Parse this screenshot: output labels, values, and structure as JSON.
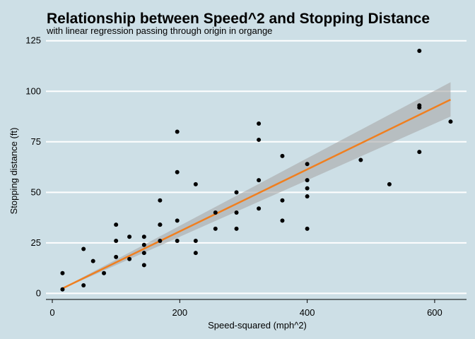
{
  "chart_data": {
    "type": "scatter",
    "title": "Relationship between Speed^2 and Stopping Distance",
    "subtitle": "with linear regression passing through origin in organge",
    "xlabel": "Speed-squared (mph^2)",
    "ylabel": "Stopping distance (ft)",
    "xlim": [
      -10,
      650
    ],
    "ylim": [
      -3,
      127
    ],
    "x_ticks": [
      0,
      200,
      400,
      600
    ],
    "y_ticks": [
      0,
      25,
      50,
      75,
      100,
      125
    ],
    "grid": "horizontal-major",
    "points": [
      [
        16,
        2
      ],
      [
        16,
        10
      ],
      [
        49,
        4
      ],
      [
        49,
        22
      ],
      [
        64,
        16
      ],
      [
        81,
        10
      ],
      [
        100,
        18
      ],
      [
        100,
        26
      ],
      [
        100,
        34
      ],
      [
        121,
        17
      ],
      [
        121,
        28
      ],
      [
        144,
        14
      ],
      [
        144,
        20
      ],
      [
        144,
        24
      ],
      [
        144,
        28
      ],
      [
        169,
        26
      ],
      [
        169,
        34
      ],
      [
        169,
        34
      ],
      [
        169,
        46
      ],
      [
        196,
        26
      ],
      [
        196,
        36
      ],
      [
        196,
        60
      ],
      [
        196,
        80
      ],
      [
        225,
        20
      ],
      [
        225,
        26
      ],
      [
        225,
        54
      ],
      [
        256,
        32
      ],
      [
        256,
        40
      ],
      [
        289,
        32
      ],
      [
        289,
        40
      ],
      [
        289,
        50
      ],
      [
        324,
        42
      ],
      [
        324,
        56
      ],
      [
        324,
        76
      ],
      [
        324,
        84
      ],
      [
        361,
        36
      ],
      [
        361,
        46
      ],
      [
        361,
        68
      ],
      [
        400,
        32
      ],
      [
        400,
        48
      ],
      [
        400,
        52
      ],
      [
        400,
        56
      ],
      [
        400,
        64
      ],
      [
        484,
        66
      ],
      [
        529,
        54
      ],
      [
        576,
        70
      ],
      [
        576,
        92
      ],
      [
        576,
        93
      ],
      [
        576,
        120
      ],
      [
        625,
        85
      ]
    ],
    "regression": {
      "type": "linear-through-origin",
      "slope": 0.1534,
      "x_range": [
        16,
        625
      ],
      "ci_at_x_max": [
        87.5,
        104.5
      ],
      "line_color": "#f07f1f",
      "band_color": "#a9a9a9"
    },
    "point_color": "#000000",
    "background_color": "#cddfe6",
    "grid_color": "#ffffff"
  }
}
